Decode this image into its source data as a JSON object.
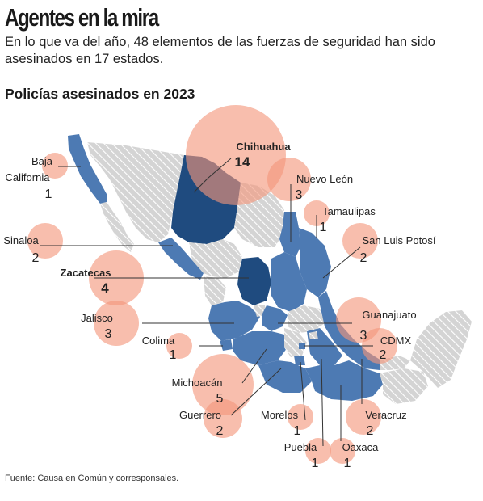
{
  "header": {
    "title": "Agentes en la mira",
    "subtitle": "En lo que va del año, 48 elementos de las fuerzas de seguridad han sido asesinados en 17 estados.",
    "section_title": "Policías asesinados en 2023"
  },
  "source": "Fuente: Causa en Común y corresponsales.",
  "colors": {
    "state_light": "#4d7ab3",
    "state_dark": "#1f4b7f",
    "state_none": "#d4d4d4",
    "hatch": "#b4b4b4",
    "bubble": "#f3967b",
    "leader": "#333333"
  },
  "states": [
    {
      "name": "Baja California",
      "value": 1
    },
    {
      "name": "Chihuahua",
      "value": 14
    },
    {
      "name": "Nuevo León",
      "value": 3
    },
    {
      "name": "Tamaulipas",
      "value": 1
    },
    {
      "name": "Sinaloa",
      "value": 2
    },
    {
      "name": "San Luis Potosí",
      "value": 2
    },
    {
      "name": "Zacatecas",
      "value": 4
    },
    {
      "name": "Guanajuato",
      "value": 3
    },
    {
      "name": "Jalisco",
      "value": 3
    },
    {
      "name": "CDMX",
      "value": 2
    },
    {
      "name": "Colima",
      "value": 1
    },
    {
      "name": "Michoacán",
      "value": 5
    },
    {
      "name": "Guerrero",
      "value": 2
    },
    {
      "name": "Morelos",
      "value": 1
    },
    {
      "name": "Veracruz",
      "value": 2
    },
    {
      "name": "Puebla",
      "value": 1
    },
    {
      "name": "Oaxaca",
      "value": 1
    }
  ]
}
